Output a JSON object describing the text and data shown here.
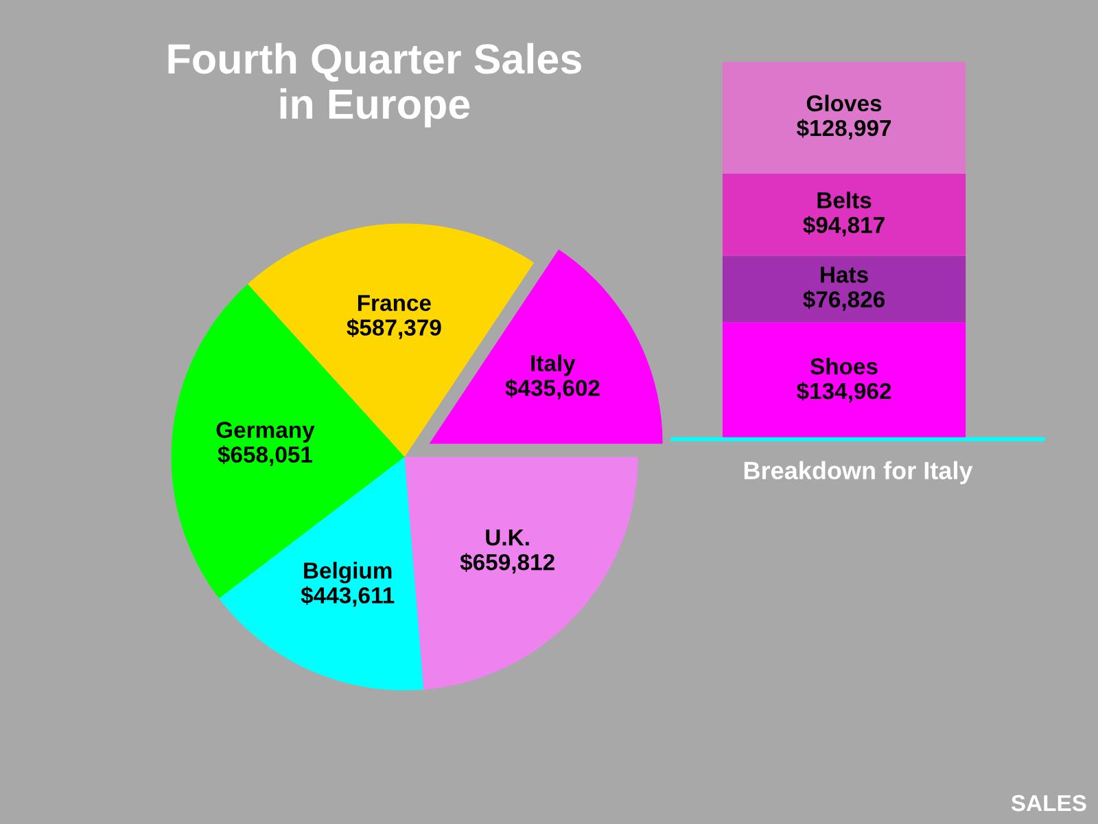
{
  "chart_data": [
    {
      "type": "pie",
      "title": "Fourth Quarter Sales\nin Europe",
      "categories": [
        "Italy",
        "France",
        "Germany",
        "Belgium",
        "U.K."
      ],
      "values": [
        435602,
        587379,
        658051,
        443611,
        659812
      ],
      "colors": [
        "#ff00ff",
        "#ffd700",
        "#00ff00",
        "#00ffff",
        "#ee82ee"
      ],
      "value_labels": [
        "$435,602",
        "$587,379",
        "$658,051",
        "$443,611",
        "$659,812"
      ],
      "legend": false
    },
    {
      "type": "bar",
      "stacked": true,
      "categories": [
        null
      ],
      "xlabel": "Breakdown for Italy",
      "legend": false,
      "annotations": [
        "SALES"
      ],
      "series": [
        {
          "name": "Shoes",
          "color": "#ff00ff",
          "values": [
            134962
          ],
          "value_labels": [
            "$134,962"
          ]
        },
        {
          "name": "Hats",
          "color": "#a030b0",
          "values": [
            76826
          ],
          "value_labels": [
            "$76,826"
          ]
        },
        {
          "name": "Belts",
          "color": "#dd33c0",
          "values": [
            94817
          ],
          "value_labels": [
            "$94,817"
          ]
        },
        {
          "name": "Gloves",
          "color": "#dd77cc",
          "values": [
            128997
          ],
          "value_labels": [
            "$128,997"
          ]
        }
      ]
    }
  ]
}
